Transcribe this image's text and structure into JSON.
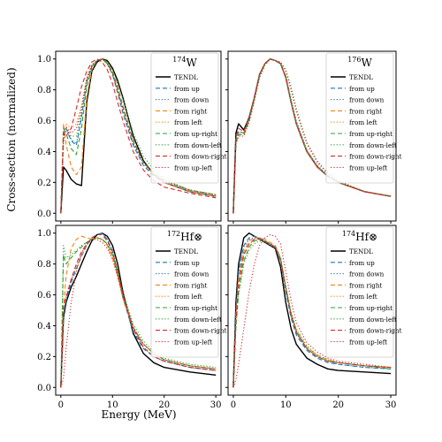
{
  "figure": {
    "xlabel": "Energy (MeV)",
    "ylabel": "Cross-section (normalized)"
  },
  "legend_entries": [
    {
      "label": "TENDL",
      "color": "#000000",
      "dash": "solid"
    },
    {
      "label": "from up",
      "color": "#1f77b4",
      "dash": "dashed"
    },
    {
      "label": "from down",
      "color": "#1f77b4",
      "dash": "dotted"
    },
    {
      "label": "from right",
      "color": "#ff7f0e",
      "dash": "dashed"
    },
    {
      "label": "from left",
      "color": "#ff7f0e",
      "dash": "dotted"
    },
    {
      "label": "from up-right",
      "color": "#2ca02c",
      "dash": "dashed"
    },
    {
      "label": "from down-left",
      "color": "#2ca02c",
      "dash": "dotted"
    },
    {
      "label": "from down-right",
      "color": "#d62728",
      "dash": "dashed"
    },
    {
      "label": "from up-left",
      "color": "#d62728",
      "dash": "dotted"
    }
  ],
  "chart_data": [
    {
      "type": "line",
      "panel": "top-left",
      "title_mass": "174",
      "title_element": "W",
      "title_symbol": "",
      "xlim": [
        -1,
        31
      ],
      "ylim": [
        -0.05,
        1.05
      ],
      "xticks": [
        0,
        10,
        20,
        30
      ],
      "yticks": [
        0.0,
        0.2,
        0.4,
        0.6,
        0.8,
        1.0
      ],
      "grid": false,
      "legend_position": "top-right",
      "x": [
        0,
        0.5,
        1,
        2,
        3,
        4,
        5,
        6,
        7,
        8,
        9,
        10,
        11,
        12,
        14,
        16,
        18,
        20,
        25,
        30
      ],
      "series": [
        {
          "name": "TENDL",
          "values": [
            0.0,
            0.3,
            0.28,
            0.22,
            0.19,
            0.18,
            0.72,
            0.92,
            0.98,
            1.0,
            0.99,
            0.94,
            0.86,
            0.75,
            0.5,
            0.34,
            0.25,
            0.2,
            0.14,
            0.11
          ]
        },
        {
          "name": "from up",
          "values": [
            0.0,
            0.5,
            0.55,
            0.47,
            0.44,
            0.62,
            0.85,
            0.95,
            0.99,
            1.0,
            0.97,
            0.9,
            0.78,
            0.65,
            0.44,
            0.31,
            0.24,
            0.2,
            0.14,
            0.11
          ]
        },
        {
          "name": "from down",
          "values": [
            0.0,
            0.5,
            0.56,
            0.48,
            0.45,
            0.63,
            0.86,
            0.96,
            0.99,
            1.0,
            0.97,
            0.91,
            0.8,
            0.67,
            0.45,
            0.32,
            0.25,
            0.2,
            0.14,
            0.11
          ]
        },
        {
          "name": "from right",
          "values": [
            0.0,
            0.58,
            0.45,
            0.3,
            0.25,
            0.3,
            0.75,
            0.93,
            0.99,
            1.0,
            0.98,
            0.92,
            0.82,
            0.7,
            0.47,
            0.33,
            0.25,
            0.2,
            0.14,
            0.11
          ]
        },
        {
          "name": "from left",
          "values": [
            0.0,
            0.45,
            0.58,
            0.55,
            0.58,
            0.7,
            0.88,
            0.96,
            0.99,
            1.0,
            0.97,
            0.9,
            0.8,
            0.68,
            0.46,
            0.33,
            0.25,
            0.21,
            0.15,
            0.12
          ]
        },
        {
          "name": "from up-right",
          "values": [
            0.0,
            0.55,
            0.52,
            0.42,
            0.38,
            0.55,
            0.82,
            0.94,
            0.99,
            1.0,
            0.97,
            0.91,
            0.81,
            0.69,
            0.47,
            0.33,
            0.26,
            0.21,
            0.15,
            0.12
          ]
        },
        {
          "name": "from down-left",
          "values": [
            0.0,
            0.48,
            0.55,
            0.5,
            0.5,
            0.66,
            0.87,
            0.96,
            0.99,
            1.0,
            0.98,
            0.93,
            0.84,
            0.74,
            0.52,
            0.37,
            0.28,
            0.22,
            0.15,
            0.12
          ]
        },
        {
          "name": "from down-right",
          "values": [
            0.0,
            0.52,
            0.5,
            0.55,
            0.68,
            0.82,
            0.92,
            0.98,
            1.0,
            0.98,
            0.93,
            0.84,
            0.72,
            0.6,
            0.4,
            0.28,
            0.21,
            0.17,
            0.13,
            0.1
          ]
        },
        {
          "name": "from up-left",
          "values": [
            0.0,
            0.47,
            0.56,
            0.52,
            0.55,
            0.68,
            0.87,
            0.96,
            0.99,
            1.0,
            0.97,
            0.9,
            0.79,
            0.67,
            0.46,
            0.33,
            0.25,
            0.21,
            0.15,
            0.12
          ]
        }
      ]
    },
    {
      "type": "line",
      "panel": "top-right",
      "title_mass": "176",
      "title_element": "W",
      "title_symbol": "",
      "xlim": [
        -1,
        31
      ],
      "ylim": [
        -0.05,
        1.05
      ],
      "xticks": [
        0,
        10,
        20,
        30
      ],
      "yticks": [
        0.0,
        0.2,
        0.4,
        0.6,
        0.8,
        1.0
      ],
      "grid": false,
      "legend_position": "top-right",
      "x": [
        0,
        0.5,
        1,
        2,
        3,
        4,
        5,
        6,
        7,
        8,
        9,
        10,
        11,
        12,
        14,
        16,
        18,
        20,
        25,
        30
      ],
      "series": [
        {
          "name": "TENDL",
          "values": [
            0.0,
            0.52,
            0.58,
            0.54,
            0.62,
            0.75,
            0.9,
            0.97,
            1.0,
            0.99,
            0.97,
            0.88,
            0.72,
            0.58,
            0.4,
            0.3,
            0.24,
            0.2,
            0.14,
            0.11
          ]
        },
        {
          "name": "from up",
          "values": [
            0.0,
            0.48,
            0.53,
            0.52,
            0.61,
            0.75,
            0.9,
            0.97,
            1.0,
            0.99,
            0.97,
            0.88,
            0.72,
            0.58,
            0.4,
            0.3,
            0.24,
            0.2,
            0.14,
            0.11
          ]
        },
        {
          "name": "from down",
          "values": [
            0.0,
            0.48,
            0.53,
            0.52,
            0.61,
            0.75,
            0.9,
            0.97,
            1.0,
            0.99,
            0.97,
            0.89,
            0.74,
            0.6,
            0.41,
            0.31,
            0.25,
            0.2,
            0.14,
            0.11
          ]
        },
        {
          "name": "from right",
          "values": [
            0.0,
            0.46,
            0.51,
            0.51,
            0.6,
            0.74,
            0.89,
            0.97,
            1.0,
            0.99,
            0.97,
            0.88,
            0.72,
            0.58,
            0.4,
            0.3,
            0.24,
            0.2,
            0.14,
            0.11
          ]
        },
        {
          "name": "from left",
          "values": [
            0.0,
            0.47,
            0.52,
            0.52,
            0.61,
            0.75,
            0.9,
            0.97,
            1.0,
            0.99,
            0.97,
            0.89,
            0.73,
            0.59,
            0.41,
            0.31,
            0.24,
            0.2,
            0.14,
            0.11
          ]
        },
        {
          "name": "from up-right",
          "values": [
            0.0,
            0.46,
            0.51,
            0.51,
            0.6,
            0.74,
            0.89,
            0.97,
            1.0,
            0.99,
            0.97,
            0.88,
            0.72,
            0.58,
            0.4,
            0.3,
            0.24,
            0.2,
            0.14,
            0.11
          ]
        },
        {
          "name": "from down-left",
          "values": [
            0.0,
            0.45,
            0.5,
            0.5,
            0.59,
            0.73,
            0.88,
            0.96,
            1.0,
            0.99,
            0.98,
            0.93,
            0.82,
            0.68,
            0.46,
            0.34,
            0.26,
            0.21,
            0.14,
            0.11
          ]
        },
        {
          "name": "from down-right",
          "values": [
            0.0,
            0.5,
            0.55,
            0.53,
            0.62,
            0.75,
            0.9,
            0.97,
            1.0,
            0.99,
            0.97,
            0.88,
            0.72,
            0.58,
            0.4,
            0.3,
            0.24,
            0.2,
            0.14,
            0.11
          ]
        },
        {
          "name": "from up-left",
          "values": [
            0.0,
            0.45,
            0.5,
            0.5,
            0.59,
            0.73,
            0.88,
            0.96,
            1.0,
            0.99,
            0.98,
            0.92,
            0.8,
            0.66,
            0.45,
            0.33,
            0.26,
            0.21,
            0.14,
            0.11
          ]
        }
      ]
    },
    {
      "type": "line",
      "panel": "bottom-left",
      "title_mass": "172",
      "title_element": "Hf",
      "title_symbol": "⊗",
      "xlim": [
        -1,
        31
      ],
      "ylim": [
        -0.05,
        1.05
      ],
      "xticks": [
        0,
        10,
        20,
        30
      ],
      "yticks": [
        0.0,
        0.2,
        0.4,
        0.6,
        0.8,
        1.0
      ],
      "grid": false,
      "legend_position": "top-right",
      "x": [
        0,
        0.5,
        1,
        2,
        3,
        4,
        5,
        6,
        7,
        8,
        9,
        10,
        11,
        12,
        14,
        16,
        18,
        20,
        25,
        30
      ],
      "series": [
        {
          "name": "TENDL",
          "values": [
            0.0,
            0.45,
            0.55,
            0.65,
            0.72,
            0.8,
            0.88,
            0.95,
            0.99,
            1.0,
            0.98,
            0.92,
            0.8,
            0.62,
            0.35,
            0.22,
            0.16,
            0.13,
            0.1,
            0.08
          ]
        },
        {
          "name": "from up",
          "values": [
            0.0,
            0.48,
            0.56,
            0.68,
            0.77,
            0.85,
            0.92,
            0.97,
            0.99,
            1.0,
            0.96,
            0.88,
            0.74,
            0.58,
            0.36,
            0.25,
            0.2,
            0.17,
            0.13,
            0.11
          ]
        },
        {
          "name": "from down",
          "values": [
            0.0,
            0.48,
            0.57,
            0.69,
            0.78,
            0.86,
            0.92,
            0.97,
            0.99,
            1.0,
            0.96,
            0.89,
            0.75,
            0.59,
            0.37,
            0.26,
            0.2,
            0.17,
            0.13,
            0.11
          ]
        },
        {
          "name": "from right",
          "values": [
            0.0,
            0.5,
            0.72,
            0.9,
            0.96,
            0.98,
            0.97,
            0.96,
            0.97,
            0.96,
            0.92,
            0.84,
            0.72,
            0.58,
            0.38,
            0.28,
            0.22,
            0.18,
            0.14,
            0.12
          ]
        },
        {
          "name": "from left",
          "values": [
            0.0,
            0.52,
            0.6,
            0.7,
            0.78,
            0.86,
            0.92,
            0.96,
            0.97,
            0.96,
            0.92,
            0.84,
            0.72,
            0.58,
            0.38,
            0.28,
            0.22,
            0.18,
            0.14,
            0.12
          ]
        },
        {
          "name": "from up-right",
          "values": [
            0.0,
            0.86,
            0.8,
            0.84,
            0.88,
            0.91,
            0.94,
            0.96,
            0.97,
            0.96,
            0.93,
            0.86,
            0.74,
            0.6,
            0.39,
            0.28,
            0.22,
            0.18,
            0.14,
            0.12
          ]
        },
        {
          "name": "from down-left",
          "values": [
            0.0,
            0.92,
            0.84,
            0.86,
            0.89,
            0.92,
            0.94,
            0.96,
            0.97,
            0.96,
            0.93,
            0.87,
            0.76,
            0.62,
            0.41,
            0.3,
            0.23,
            0.19,
            0.15,
            0.13
          ]
        },
        {
          "name": "from down-right",
          "values": [
            0.0,
            0.52,
            0.58,
            0.7,
            0.8,
            0.88,
            0.93,
            0.97,
            0.99,
            0.99,
            0.95,
            0.88,
            0.75,
            0.6,
            0.38,
            0.26,
            0.2,
            0.17,
            0.13,
            0.11
          ]
        },
        {
          "name": "from up-left",
          "values": [
            0.0,
            0.06,
            0.25,
            0.55,
            0.75,
            0.87,
            0.93,
            0.96,
            0.96,
            0.94,
            0.9,
            0.83,
            0.72,
            0.59,
            0.39,
            0.28,
            0.22,
            0.18,
            0.14,
            0.12
          ]
        }
      ]
    },
    {
      "type": "line",
      "panel": "bottom-right",
      "title_mass": "174",
      "title_element": "Hf",
      "title_symbol": "⊗",
      "xlim": [
        -1,
        31
      ],
      "ylim": [
        -0.05,
        1.05
      ],
      "xticks": [
        0,
        10,
        20,
        30
      ],
      "yticks": [
        0.0,
        0.2,
        0.4,
        0.6,
        0.8,
        1.0
      ],
      "grid": false,
      "legend_position": "top-right",
      "x": [
        0,
        0.5,
        1,
        2,
        3,
        4,
        5,
        6,
        7,
        8,
        9,
        10,
        11,
        12,
        14,
        16,
        18,
        20,
        25,
        30
      ],
      "series": [
        {
          "name": "TENDL",
          "values": [
            0.0,
            0.55,
            0.8,
            0.97,
            1.0,
            0.98,
            0.96,
            0.94,
            0.92,
            0.9,
            0.78,
            0.55,
            0.38,
            0.28,
            0.19,
            0.15,
            0.12,
            0.11,
            0.1,
            0.09
          ]
        },
        {
          "name": "from up",
          "values": [
            0.0,
            0.5,
            0.75,
            0.92,
            0.97,
            0.98,
            0.97,
            0.95,
            0.93,
            0.91,
            0.82,
            0.62,
            0.45,
            0.34,
            0.24,
            0.19,
            0.16,
            0.15,
            0.13,
            0.12
          ]
        },
        {
          "name": "from down",
          "values": [
            0.0,
            0.49,
            0.74,
            0.91,
            0.96,
            0.97,
            0.96,
            0.94,
            0.92,
            0.9,
            0.82,
            0.62,
            0.46,
            0.35,
            0.25,
            0.2,
            0.17,
            0.15,
            0.13,
            0.12
          ]
        },
        {
          "name": "from right",
          "values": [
            0.0,
            0.46,
            0.7,
            0.88,
            0.95,
            0.97,
            0.97,
            0.96,
            0.94,
            0.92,
            0.84,
            0.65,
            0.48,
            0.37,
            0.26,
            0.21,
            0.18,
            0.16,
            0.14,
            0.13
          ]
        },
        {
          "name": "from left",
          "values": [
            0.0,
            0.45,
            0.68,
            0.86,
            0.93,
            0.95,
            0.96,
            0.95,
            0.93,
            0.91,
            0.83,
            0.64,
            0.47,
            0.36,
            0.25,
            0.2,
            0.17,
            0.16,
            0.14,
            0.13
          ]
        },
        {
          "name": "from up-right",
          "values": [
            0.0,
            0.4,
            0.62,
            0.82,
            0.91,
            0.95,
            0.96,
            0.95,
            0.93,
            0.91,
            0.83,
            0.64,
            0.47,
            0.36,
            0.25,
            0.2,
            0.17,
            0.16,
            0.14,
            0.12
          ]
        },
        {
          "name": "from down-left",
          "values": [
            0.0,
            0.38,
            0.6,
            0.8,
            0.89,
            0.93,
            0.95,
            0.94,
            0.93,
            0.91,
            0.84,
            0.66,
            0.49,
            0.38,
            0.27,
            0.21,
            0.18,
            0.16,
            0.14,
            0.13
          ]
        },
        {
          "name": "from down-right",
          "values": [
            0.0,
            0.44,
            0.67,
            0.86,
            0.93,
            0.96,
            0.96,
            0.95,
            0.93,
            0.91,
            0.83,
            0.64,
            0.47,
            0.36,
            0.25,
            0.2,
            0.17,
            0.16,
            0.14,
            0.13
          ]
        },
        {
          "name": "from up-left",
          "values": [
            0.0,
            0.05,
            0.15,
            0.38,
            0.62,
            0.8,
            0.92,
            0.97,
            0.99,
            0.98,
            0.93,
            0.75,
            0.56,
            0.42,
            0.29,
            0.23,
            0.19,
            0.17,
            0.15,
            0.13
          ]
        }
      ]
    }
  ]
}
